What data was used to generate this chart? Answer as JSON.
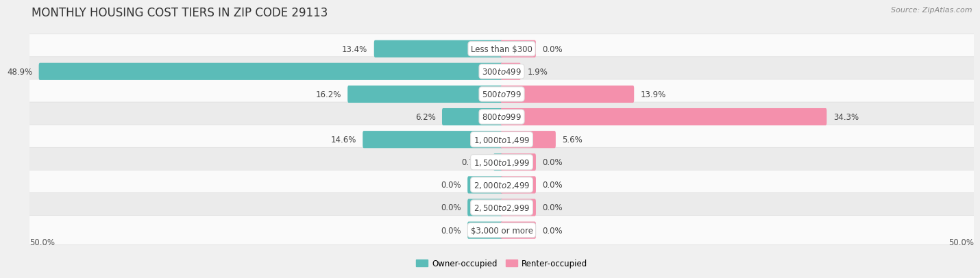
{
  "title": "MONTHLY HOUSING COST TIERS IN ZIP CODE 29113",
  "source": "Source: ZipAtlas.com",
  "categories": [
    "Less than $300",
    "$300 to $499",
    "$500 to $799",
    "$800 to $999",
    "$1,000 to $1,499",
    "$1,500 to $1,999",
    "$2,000 to $2,499",
    "$2,500 to $2,999",
    "$3,000 or more"
  ],
  "owner_values": [
    13.4,
    48.9,
    16.2,
    6.2,
    14.6,
    0.75,
    0.0,
    0.0,
    0.0
  ],
  "renter_values": [
    0.0,
    1.9,
    13.9,
    34.3,
    5.6,
    0.0,
    0.0,
    0.0,
    0.0
  ],
  "owner_color": "#5bbcb8",
  "renter_color": "#f490ac",
  "background_color": "#f0f0f0",
  "row_colors": [
    "#fafafa",
    "#ebebeb"
  ],
  "axis_limit": 50.0,
  "x_axis_left_label": "50.0%",
  "x_axis_right_label": "50.0%",
  "title_fontsize": 12,
  "label_fontsize": 8.5,
  "value_fontsize": 8.5,
  "source_fontsize": 8,
  "bar_height": 0.52,
  "stub_bar_size": 3.5,
  "legend_label_owner": "Owner-occupied",
  "legend_label_renter": "Renter-occupied"
}
